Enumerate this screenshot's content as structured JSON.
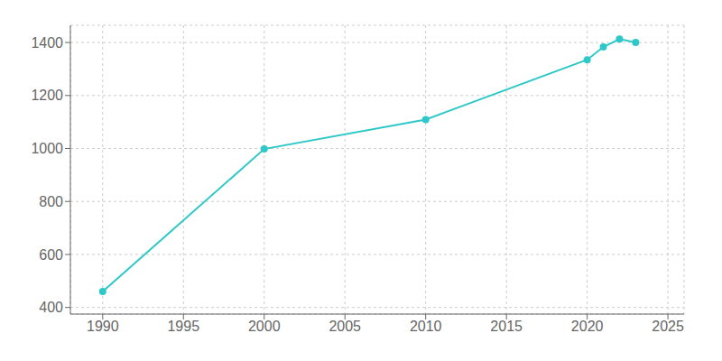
{
  "chart_data": {
    "type": "line",
    "x": [
      1990,
      2000,
      2010,
      2020,
      2021,
      2022,
      2023
    ],
    "values": [
      460,
      998,
      1109,
      1335,
      1383,
      1413,
      1400
    ],
    "color": "#2ec8c8",
    "marker": "circle",
    "xlim": [
      1988,
      2026
    ],
    "ylim": [
      375,
      1465
    ],
    "xticks": [
      1990,
      1995,
      2000,
      2005,
      2010,
      2015,
      2020,
      2025
    ],
    "yticks": [
      400,
      600,
      800,
      1000,
      1200,
      1400
    ],
    "grid": true
  }
}
